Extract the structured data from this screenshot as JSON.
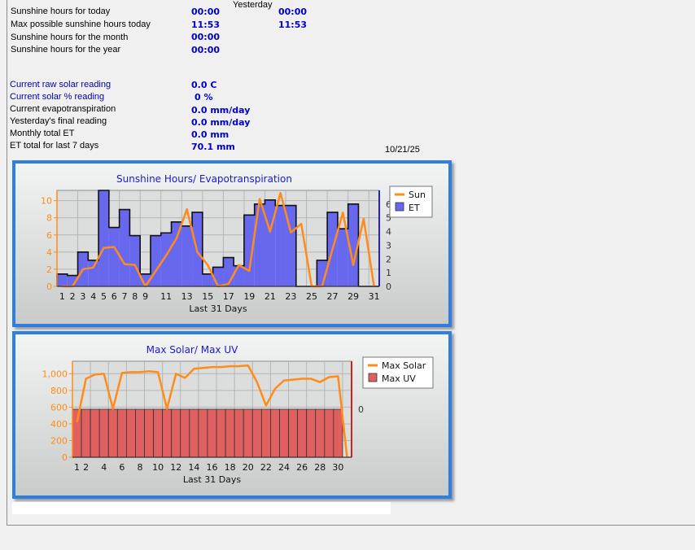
{
  "header": {
    "yesterday_label": "Yesterday"
  },
  "stats_top": [
    {
      "label": "Sunshine hours for today",
      "today": "00:00",
      "yesterday": "00:00"
    },
    {
      "label": "Max possible sunshine hours today",
      "today": "11:53",
      "yesterday": "11:53"
    },
    {
      "label": "Sunshine hours for the month",
      "today": "00:00",
      "yesterday": ""
    },
    {
      "label": "Sunshine hours for the year",
      "today": "00:00",
      "yesterday": ""
    }
  ],
  "stats_bottom": [
    {
      "label": "Current raw solar reading",
      "value": "0.0 C",
      "blue": true
    },
    {
      "label": "Current solar % reading",
      "value": "0 %",
      "blue": true
    },
    {
      "label": "Current evapotranspiration",
      "value": "0.0 mm/day",
      "blue": false
    },
    {
      "label": "Yesterday's final reading",
      "value": "0.0 mm/day",
      "blue": false
    },
    {
      "label": "Monthly total ET",
      "value": "0.0 mm",
      "blue": false
    },
    {
      "label": "ET total for last 7 days",
      "value": "70.1 mm",
      "blue": false
    }
  ],
  "date": "10/21/25",
  "colors": {
    "line": "#ff8c1a",
    "et_bar": "#6868ee",
    "uv_bar": "#e06060",
    "panel_border": "#2f7fe0",
    "title": "#1a1acc"
  },
  "chart_data": [
    {
      "type": "bar",
      "title": "Sunshine Hours/ Evapotranspiration",
      "xlabel": "Last 31 Days",
      "x_ticks": [
        "1",
        "2",
        "3",
        "4",
        "5",
        "6",
        "7",
        "8",
        "9",
        "11",
        "13",
        "15",
        "17",
        "19",
        "21",
        "23",
        "25",
        "27",
        "29",
        "31"
      ],
      "y_left": {
        "ticks": [
          "0",
          "2",
          "4",
          "6",
          "8",
          "10"
        ],
        "range": [
          0,
          11.2
        ]
      },
      "y_right": {
        "ticks": [
          "0",
          "1",
          "2",
          "3",
          "4",
          "5",
          "6"
        ],
        "range": [
          0,
          7
        ]
      },
      "legend_position": "right",
      "series": [
        {
          "name": "Sun",
          "kind": "line",
          "axis": "left",
          "values": [
            0,
            0,
            2.0,
            2.2,
            4.5,
            4.6,
            2.6,
            2.5,
            0,
            1.8,
            3.6,
            5.6,
            9.0,
            4.0,
            2.5,
            0,
            0.3,
            2.5,
            1.8,
            10.2,
            6.4,
            10.9,
            6.3,
            7.3,
            0,
            0,
            4.3,
            8.6,
            2.5,
            7.9,
            0
          ]
        },
        {
          "name": "ET",
          "kind": "bar",
          "axis": "right",
          "values": [
            0.9,
            0.8,
            2.5,
            1.9,
            7.0,
            4.3,
            5.6,
            3.7,
            0.9,
            3.7,
            3.9,
            4.7,
            4.4,
            5.4,
            0.9,
            1.4,
            2.1,
            1.5,
            5.2,
            6.0,
            6.3,
            5.9,
            5.9,
            0,
            0,
            1.9,
            5.4,
            4.2,
            6.0,
            0,
            0
          ]
        }
      ]
    },
    {
      "type": "bar",
      "title": "Max Solar/ Max UV",
      "xlabel": "Last 31 Days",
      "x_ticks": [
        "1",
        "2",
        "4",
        "6",
        "8",
        "10",
        "12",
        "14",
        "16",
        "18",
        "20",
        "22",
        "24",
        "26",
        "28",
        "30"
      ],
      "y_left": {
        "ticks": [
          "0",
          "200",
          "400",
          "600",
          "800",
          "1,000"
        ],
        "range": [
          0,
          1150
        ]
      },
      "y_right": {
        "ticks": [
          "0"
        ],
        "range": [
          -1,
          1
        ]
      },
      "legend_position": "right",
      "series": [
        {
          "name": "Max Solar",
          "kind": "line",
          "axis": "left",
          "values": [
            420,
            940,
            990,
            1000,
            580,
            1010,
            1020,
            1020,
            1030,
            1020,
            580,
            1000,
            950,
            1060,
            1070,
            1080,
            1080,
            1090,
            1090,
            1100,
            900,
            620,
            820,
            920,
            930,
            940,
            940,
            900,
            960,
            970,
            0
          ]
        },
        {
          "name": "Max UV",
          "kind": "bar",
          "axis": "right",
          "values": [
            0,
            0,
            0,
            0,
            0,
            0,
            0,
            0,
            0,
            0,
            0,
            0,
            0,
            0,
            0,
            0,
            0,
            0,
            0,
            0,
            0,
            0,
            0,
            0,
            0,
            0,
            0,
            0,
            0,
            0,
            0
          ]
        }
      ]
    }
  ]
}
